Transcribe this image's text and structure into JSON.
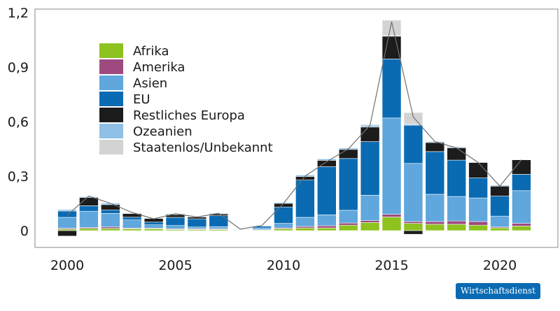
{
  "chart_data": {
    "type": "bar",
    "stacked": true,
    "title": "",
    "xlabel": "",
    "ylabel": "",
    "ylim": [
      -0.03,
      1.2
    ],
    "yticks": [
      0,
      0.3,
      0.6,
      0.9,
      1.2
    ],
    "ytick_labels": [
      "0",
      "0,3",
      "0,6",
      "0,9",
      "1,2"
    ],
    "xticks": [
      2000,
      2005,
      2010,
      2015,
      2020
    ],
    "xtick_labels": [
      "2000",
      "2005",
      "2010",
      "2015",
      "2020"
    ],
    "categories": [
      2000,
      2001,
      2002,
      2003,
      2004,
      2005,
      2006,
      2007,
      2008,
      2009,
      2010,
      2011,
      2012,
      2013,
      2014,
      2015,
      2016,
      2017,
      2018,
      2019,
      2020,
      2021
    ],
    "series": [
      {
        "name": "Afrika",
        "color": "#8dc21f",
        "values": [
          0.008,
          0.012,
          0.012,
          0.01,
          0.01,
          0.006,
          0.006,
          0.006,
          0.001,
          0.003,
          0.01,
          0.015,
          0.015,
          0.03,
          0.045,
          0.075,
          0.04,
          0.035,
          0.035,
          0.03,
          0.015,
          0.025
        ]
      },
      {
        "name": "Amerika",
        "color": "#9e4a7e",
        "values": [
          0.005,
          0.005,
          0.008,
          0.004,
          0.004,
          0.004,
          0.004,
          0.004,
          0.001,
          0.002,
          0.005,
          0.008,
          0.012,
          0.012,
          0.01,
          0.015,
          0.01,
          0.015,
          0.018,
          0.02,
          0.005,
          0.015
        ]
      },
      {
        "name": "Asien",
        "color": "#5fa7dc",
        "values": [
          0.06,
          0.09,
          0.075,
          0.045,
          0.018,
          0.018,
          0.01,
          0.012,
          0.002,
          0.01,
          0.025,
          0.05,
          0.06,
          0.07,
          0.14,
          0.53,
          0.32,
          0.15,
          0.135,
          0.13,
          0.06,
          0.18
        ]
      },
      {
        "name": "EU",
        "color": "#0a6bb3",
        "values": [
          0.035,
          0.03,
          0.018,
          0.015,
          0.015,
          0.045,
          0.045,
          0.06,
          0.004,
          0.01,
          0.09,
          0.205,
          0.265,
          0.285,
          0.295,
          0.325,
          0.21,
          0.235,
          0.2,
          0.11,
          0.11,
          0.09
        ]
      },
      {
        "name": "Restliches Europa",
        "color": "#1c1c1c",
        "values": [
          -0.03,
          0.045,
          0.03,
          0.02,
          0.02,
          0.015,
          0.01,
          0.01,
          0.001,
          0.002,
          0.02,
          0.02,
          0.035,
          0.05,
          0.08,
          0.125,
          -0.02,
          0.05,
          0.068,
          0.085,
          0.055,
          0.08
        ]
      },
      {
        "name": "Ozeanien",
        "color": "#8fc0e6",
        "values": [
          0.008,
          0.005,
          0.008,
          0.004,
          0.0,
          0.005,
          0.003,
          0.004,
          0.001,
          0.001,
          0.005,
          0.008,
          0.008,
          0.008,
          0.01,
          0.003,
          0.005,
          0.006,
          0.006,
          0.003,
          0.005,
          0.0
        ]
      },
      {
        "name": "Staatenlos/Unbekannt",
        "color": "#d3d3d3",
        "values": [
          0,
          0,
          0,
          0,
          0,
          0,
          0,
          0,
          0,
          0,
          0,
          0,
          0,
          0,
          0.005,
          0.085,
          0.065,
          0.003,
          0.002,
          0.002,
          0.0,
          0.002
        ]
      }
    ],
    "total_line": {
      "color": "#707070",
      "values": [
        0.085,
        0.19,
        0.15,
        0.1,
        0.065,
        0.093,
        0.075,
        0.095,
        0.008,
        0.028,
        0.15,
        0.3,
        0.38,
        0.45,
        0.58,
        1.15,
        0.625,
        0.49,
        0.455,
        0.375,
        0.245,
        0.39
      ]
    },
    "legend_position": "top-left",
    "grid": false
  },
  "source_badge": "Wirtschaftsdienst"
}
